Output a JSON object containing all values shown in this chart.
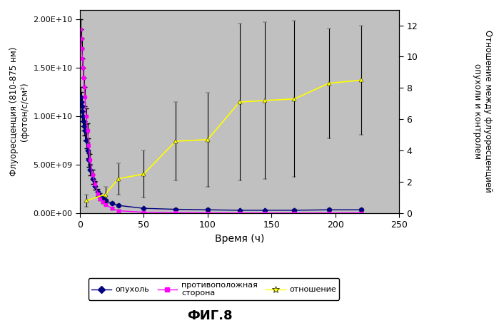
{
  "title": "ФИГ.8",
  "xlabel": "Время (ч)",
  "ylabel_left": "Флуоресценция (810-875 нм)\n(фотон/с/см²)",
  "ylabel_right": "Отношение между флуоресценцией\nопухоли и контролем",
  "xlim": [
    0,
    250
  ],
  "ylim_left": [
    0,
    21000000000.0
  ],
  "ylim_right": [
    0,
    13
  ],
  "background_color": "#c0c0c0",
  "tumor_x": [
    0.5,
    1,
    1.5,
    2,
    2.5,
    3,
    3.5,
    4,
    5,
    6,
    7,
    8,
    10,
    12,
    14,
    16,
    18,
    20,
    25,
    30,
    50,
    75,
    100,
    125,
    145,
    168,
    195,
    220
  ],
  "tumor_y": [
    12000000000.0,
    11500000000.0,
    11000000000.0,
    10500000000.0,
    10000000000.0,
    9500000000.0,
    9000000000.0,
    8500000000.0,
    7500000000.0,
    6500000000.0,
    5500000000.0,
    4500000000.0,
    3500000000.0,
    2800000000.0,
    2200000000.0,
    1800000000.0,
    1500000000.0,
    1300000000.0,
    1000000000.0,
    800000000.0,
    500000000.0,
    400000000.0,
    350000000.0,
    300000000.0,
    300000000.0,
    300000000.0,
    350000000.0,
    350000000.0
  ],
  "tumor_yerr": [
    1000000000.0,
    1000000000.0,
    1000000000.0,
    1000000000.0,
    1000000000.0,
    1000000000.0,
    1000000000.0,
    1000000000.0,
    800000000.0,
    800000000.0,
    700000000.0,
    600000000.0,
    500000000.0,
    400000000.0,
    300000000.0,
    250000000.0,
    200000000.0,
    150000000.0,
    150000000.0,
    150000000.0,
    100000000.0,
    100000000.0,
    150000000.0,
    100000000.0,
    100000000.0,
    150000000.0,
    150000000.0,
    150000000.0
  ],
  "contra_x": [
    0.5,
    1,
    1.5,
    2,
    2.5,
    3,
    3.5,
    4,
    5,
    6,
    7,
    8,
    10,
    12,
    14,
    16,
    18,
    20,
    25,
    30,
    50,
    75,
    100,
    125,
    145,
    168,
    195,
    220
  ],
  "contra_y": [
    19000000000.0,
    18000000000.0,
    17000000000.0,
    16000000000.0,
    15000000000.0,
    14000000000.0,
    13000000000.0,
    12000000000.0,
    10000000000.0,
    8500000000.0,
    7000000000.0,
    5500000000.0,
    4000000000.0,
    3000000000.0,
    2000000000.0,
    1500000000.0,
    1200000000.0,
    900000000.0,
    500000000.0,
    250000000.0,
    100000000.0,
    50000000.0,
    30000000.0,
    20000000.0,
    20000000.0,
    20000000.0,
    20000000.0,
    30000000.0
  ],
  "contra_yerr": [
    1000000000.0,
    1000000000.0,
    1000000000.0,
    1000000000.0,
    1000000000.0,
    1000000000.0,
    1000000000.0,
    1000000000.0,
    800000000.0,
    800000000.0,
    700000000.0,
    600000000.0,
    500000000.0,
    300000000.0,
    200000000.0,
    200000000.0,
    150000000.0,
    100000000.0,
    100000000.0,
    100000000.0,
    50000000.0,
    30000000.0,
    20000000.0,
    10000000.0,
    10000000.0,
    10000000.0,
    10000000.0,
    10000000.0
  ],
  "ratio_x": [
    5,
    20,
    30,
    50,
    75,
    100,
    125,
    145,
    168,
    195,
    220
  ],
  "ratio_y": [
    0.8,
    1.2,
    2.2,
    2.5,
    4.6,
    4.7,
    7.1,
    7.2,
    7.3,
    8.3,
    8.5
  ],
  "ratio_yerr": [
    0.4,
    0.5,
    1.0,
    1.5,
    2.5,
    3.0,
    5.0,
    5.0,
    5.0,
    3.5,
    3.5
  ],
  "tumor_color": "#000080",
  "contra_color": "#ff00ff",
  "ratio_color": "#ffff00",
  "yticks_left": [
    0,
    5000000000.0,
    10000000000.0,
    15000000000.0,
    20000000000.0
  ],
  "ytick_labels_left": [
    "0.00E+00",
    "5.00E+09",
    "1.00E+10",
    "1.50E+10",
    "2.00E+10"
  ],
  "yticks_right": [
    0,
    2,
    4,
    6,
    8,
    10,
    12
  ],
  "xticks": [
    0,
    50,
    100,
    150,
    200,
    250
  ],
  "legend_labels": [
    "опухоль",
    "противоположная\nсторона",
    "отношение"
  ]
}
